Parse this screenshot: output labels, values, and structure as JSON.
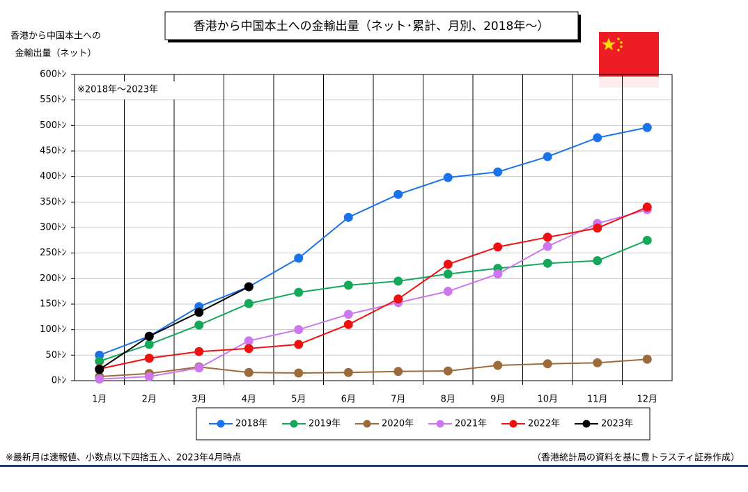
{
  "chart_data": {
    "type": "line",
    "title": "香港から中国本土への金輸出量（ネット･累計、月別、2018年～）",
    "y_label": [
      "香港から中国本土への",
      "金輸出量（ネット）"
    ],
    "annotation": "※2018年～2023年",
    "footnote": "※最新月は速報値、小数点以下四捨五入、2023年4月時点",
    "source": "（香港統計局の資料を基に豊トラスティ証券作成）",
    "categories": [
      "1月",
      "2月",
      "3月",
      "4月",
      "5月",
      "6月",
      "7月",
      "8月",
      "9月",
      "10月",
      "11月",
      "12月"
    ],
    "ylim": [
      0,
      600
    ],
    "yticks": [
      {
        "value": 0,
        "label": "0ﾄﾝ"
      },
      {
        "value": 50,
        "label": "50ﾄﾝ"
      },
      {
        "value": 100,
        "label": "100ﾄﾝ"
      },
      {
        "value": 150,
        "label": "150ﾄﾝ"
      },
      {
        "value": 200,
        "label": "200ﾄﾝ"
      },
      {
        "value": 250,
        "label": "250ﾄﾝ"
      },
      {
        "value": 300,
        "label": "300ﾄﾝ"
      },
      {
        "value": 350,
        "label": "350ﾄﾝ"
      },
      {
        "value": 400,
        "label": "400ﾄﾝ"
      },
      {
        "value": 450,
        "label": "450ﾄﾝ"
      },
      {
        "value": 500,
        "label": "500ﾄﾝ"
      },
      {
        "value": 550,
        "label": "550ﾄﾝ"
      },
      {
        "value": 600,
        "label": "600ﾄﾝ"
      }
    ],
    "grid": true,
    "series": [
      {
        "name": "2018年",
        "color": "#1a73e8",
        "values": [
          50,
          87,
          145,
          184,
          240,
          320,
          365,
          398,
          409,
          439,
          476,
          496
        ]
      },
      {
        "name": "2019年",
        "color": "#16a85a",
        "values": [
          38,
          71,
          109,
          151,
          173,
          187,
          195,
          209,
          220,
          230,
          235,
          275
        ]
      },
      {
        "name": "2020年",
        "color": "#9c6b3c",
        "values": [
          8,
          14,
          27,
          16,
          15,
          16,
          18,
          19,
          30,
          33,
          35,
          42
        ]
      },
      {
        "name": "2021年",
        "color": "#cc77ee",
        "values": [
          3,
          8,
          25,
          78,
          100,
          130,
          153,
          175,
          209,
          263,
          308,
          335
        ]
      },
      {
        "name": "2022年",
        "color": "#ee1111",
        "values": [
          23,
          44,
          57,
          63,
          71,
          110,
          160,
          228,
          262,
          281,
          299,
          340
        ]
      },
      {
        "name": "2023年",
        "color": "#000000",
        "values": [
          22,
          87,
          134,
          184,
          null,
          null,
          null,
          null,
          null,
          null,
          null,
          null
        ]
      }
    ]
  }
}
